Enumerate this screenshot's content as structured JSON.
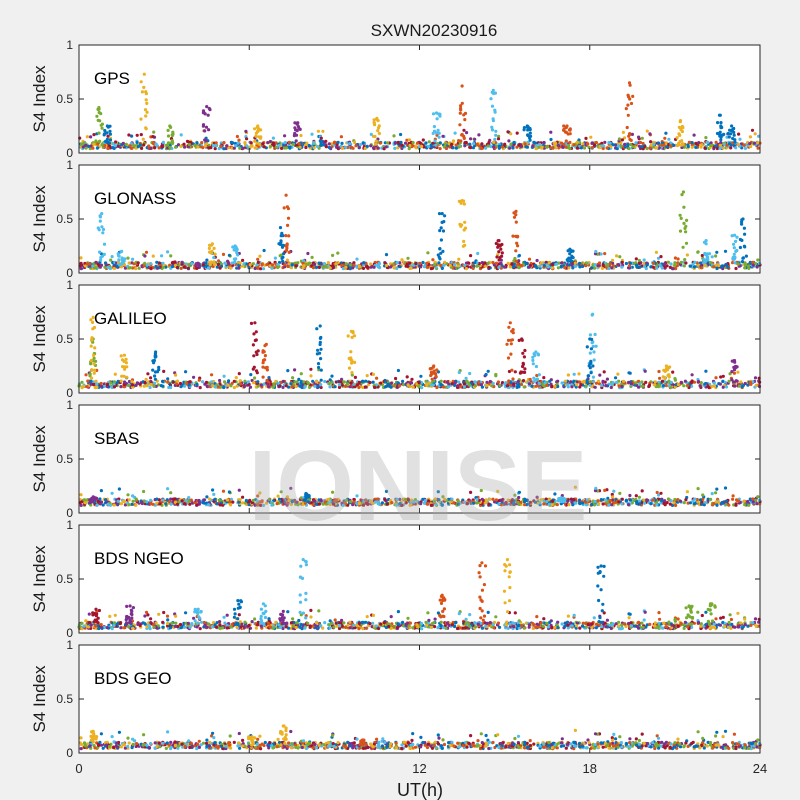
{
  "title": "SXWN20230916",
  "xlabel": "UT(h)",
  "ylabel": "S4 Index",
  "watermark": "IONISE",
  "colors": [
    "#0072BD",
    "#D95319",
    "#EDB120",
    "#7E2F8E",
    "#77AC30",
    "#4DBEEE",
    "#A2142F"
  ],
  "chart_data": [
    {
      "type": "scatter",
      "panel_label": "GPS",
      "xlim": [
        0,
        24
      ],
      "ylim": [
        0,
        1
      ],
      "x_ticks": [
        0,
        6,
        12,
        18,
        24
      ],
      "y_ticks": [
        0,
        0.5,
        1
      ],
      "x_tick_labels": [
        "",
        "",
        "",
        "",
        ""
      ],
      "y_tick_labels": [
        "0",
        "0.5",
        "1"
      ],
      "baseline": 0.07,
      "spikes": [
        [
          0.7,
          0.42,
          4
        ],
        [
          1.0,
          0.25,
          0
        ],
        [
          2.3,
          0.73,
          2
        ],
        [
          3.2,
          0.25,
          4
        ],
        [
          4.5,
          0.43,
          3
        ],
        [
          6.3,
          0.25,
          2
        ],
        [
          7.7,
          0.28,
          3
        ],
        [
          10.5,
          0.32,
          2
        ],
        [
          12.6,
          0.37,
          5
        ],
        [
          13.5,
          0.62,
          1
        ],
        [
          14.6,
          0.58,
          5
        ],
        [
          15.8,
          0.25,
          0
        ],
        [
          17.2,
          0.25,
          1
        ],
        [
          19.4,
          0.65,
          1
        ],
        [
          21.2,
          0.3,
          2
        ],
        [
          22.6,
          0.35,
          0
        ],
        [
          23.0,
          0.25,
          0
        ]
      ]
    },
    {
      "type": "scatter",
      "panel_label": "GLONASS",
      "xlim": [
        0,
        24
      ],
      "ylim": [
        0,
        1
      ],
      "x_ticks": [
        0,
        6,
        12,
        18,
        24
      ],
      "y_ticks": [
        0,
        0.5,
        1
      ],
      "x_tick_labels": [
        "",
        "",
        "",
        "",
        ""
      ],
      "y_tick_labels": [
        "0",
        "0.5",
        "1"
      ],
      "baseline": 0.07,
      "spikes": [
        [
          0.8,
          0.55,
          5
        ],
        [
          1.5,
          0.2,
          5
        ],
        [
          4.7,
          0.27,
          2
        ],
        [
          5.5,
          0.25,
          5
        ],
        [
          7.3,
          0.72,
          1
        ],
        [
          7.1,
          0.42,
          0
        ],
        [
          12.8,
          0.55,
          0
        ],
        [
          13.5,
          0.67,
          2
        ],
        [
          15.4,
          0.57,
          1
        ],
        [
          14.8,
          0.3,
          6
        ],
        [
          17.3,
          0.22,
          0
        ],
        [
          21.3,
          0.75,
          4
        ],
        [
          22.1,
          0.3,
          5
        ],
        [
          23.4,
          0.5,
          0
        ],
        [
          23.1,
          0.35,
          5
        ]
      ]
    },
    {
      "type": "scatter",
      "panel_label": "GALILEO",
      "xlim": [
        0,
        24
      ],
      "ylim": [
        0,
        1
      ],
      "x_ticks": [
        0,
        6,
        12,
        18,
        24
      ],
      "y_ticks": [
        0,
        0.5,
        1
      ],
      "x_tick_labels": [
        "",
        "",
        "",
        "",
        ""
      ],
      "y_tick_labels": [
        "0",
        "0.5",
        "1"
      ],
      "baseline": 0.08,
      "spikes": [
        [
          0.5,
          0.5,
          4
        ],
        [
          0.5,
          0.7,
          2
        ],
        [
          1.6,
          0.35,
          2
        ],
        [
          2.7,
          0.38,
          0
        ],
        [
          6.2,
          0.65,
          6
        ],
        [
          6.6,
          0.45,
          1
        ],
        [
          8.5,
          0.62,
          0
        ],
        [
          9.6,
          0.57,
          2
        ],
        [
          12.5,
          0.25,
          1
        ],
        [
          15.2,
          0.65,
          1
        ],
        [
          15.6,
          0.5,
          6
        ],
        [
          16.1,
          0.38,
          5
        ],
        [
          18.1,
          0.73,
          5
        ],
        [
          18.0,
          0.5,
          0
        ],
        [
          20.7,
          0.25,
          2
        ],
        [
          23.1,
          0.3,
          3
        ]
      ]
    },
    {
      "type": "scatter",
      "panel_label": "SBAS",
      "xlim": [
        0,
        24
      ],
      "ylim": [
        0,
        1
      ],
      "x_ticks": [
        0,
        6,
        12,
        18,
        24
      ],
      "y_ticks": [
        0,
        0.5,
        1
      ],
      "x_tick_labels": [
        "",
        "",
        "",
        "",
        ""
      ],
      "y_tick_labels": [
        "0",
        "0.5",
        "1"
      ],
      "baseline": 0.1,
      "spikes": [
        [
          0.5,
          0.15,
          3
        ],
        [
          8.0,
          0.18,
          0
        ],
        [
          17.0,
          0.14,
          5
        ]
      ]
    },
    {
      "type": "scatter",
      "panel_label": "BDS NGEO",
      "xlim": [
        0,
        24
      ],
      "ylim": [
        0,
        1
      ],
      "x_ticks": [
        0,
        6,
        12,
        18,
        24
      ],
      "y_ticks": [
        0,
        0.5,
        1
      ],
      "x_tick_labels": [
        "",
        "",
        "",
        "",
        ""
      ],
      "y_tick_labels": [
        "0",
        "0.5",
        "1"
      ],
      "baseline": 0.07,
      "spikes": [
        [
          0.6,
          0.22,
          6
        ],
        [
          1.8,
          0.25,
          3
        ],
        [
          4.2,
          0.22,
          5
        ],
        [
          5.6,
          0.3,
          0
        ],
        [
          6.5,
          0.27,
          5
        ],
        [
          7.9,
          0.68,
          5
        ],
        [
          7.2,
          0.2,
          3
        ],
        [
          12.8,
          0.35,
          1
        ],
        [
          14.2,
          0.65,
          1
        ],
        [
          15.1,
          0.68,
          2
        ],
        [
          18.4,
          0.62,
          0
        ],
        [
          21.5,
          0.25,
          4
        ],
        [
          22.3,
          0.27,
          4
        ]
      ]
    },
    {
      "type": "scatter",
      "panel_label": "BDS GEO",
      "xlim": [
        0,
        24
      ],
      "ylim": [
        0,
        1
      ],
      "x_ticks": [
        0,
        6,
        12,
        18,
        24
      ],
      "y_ticks": [
        0,
        0.5,
        1
      ],
      "x_tick_labels": [
        "0",
        "6",
        "12",
        "18",
        "24"
      ],
      "y_tick_labels": [
        "0",
        "0.5",
        "1"
      ],
      "baseline": 0.07,
      "spikes": [
        [
          0.5,
          0.2,
          2
        ],
        [
          6.1,
          0.15,
          2
        ],
        [
          7.2,
          0.25,
          2
        ],
        [
          10.0,
          0.12,
          1
        ]
      ]
    }
  ]
}
